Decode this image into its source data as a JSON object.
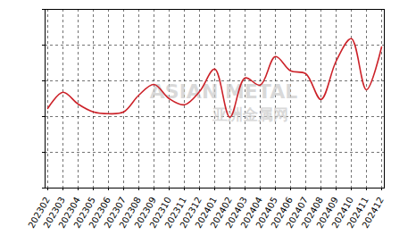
{
  "chart_data": {
    "type": "line",
    "categories": [
      "202302",
      "202303",
      "202304",
      "202305",
      "202306",
      "202307",
      "202308",
      "202309",
      "202310",
      "202311",
      "202312",
      "202401",
      "202402",
      "202403",
      "202404",
      "202405",
      "202406",
      "202407",
      "202408",
      "202409",
      "202410",
      "202411",
      "202412"
    ],
    "values": [
      2.23,
      2.68,
      2.35,
      2.13,
      2.08,
      2.13,
      2.6,
      2.9,
      2.5,
      2.33,
      2.7,
      3.33,
      1.98,
      3.08,
      2.88,
      3.68,
      3.28,
      3.2,
      2.48,
      3.55,
      4.18,
      2.75,
      3.95
    ],
    "color": "#cc2229",
    "ylim": [
      0,
      5
    ],
    "yticks": [
      0,
      1,
      2,
      3,
      4,
      5
    ],
    "grid": true,
    "tick_labels": "x",
    "annotations": [
      "ASIAN METAL",
      "亚洲金属网"
    ]
  }
}
